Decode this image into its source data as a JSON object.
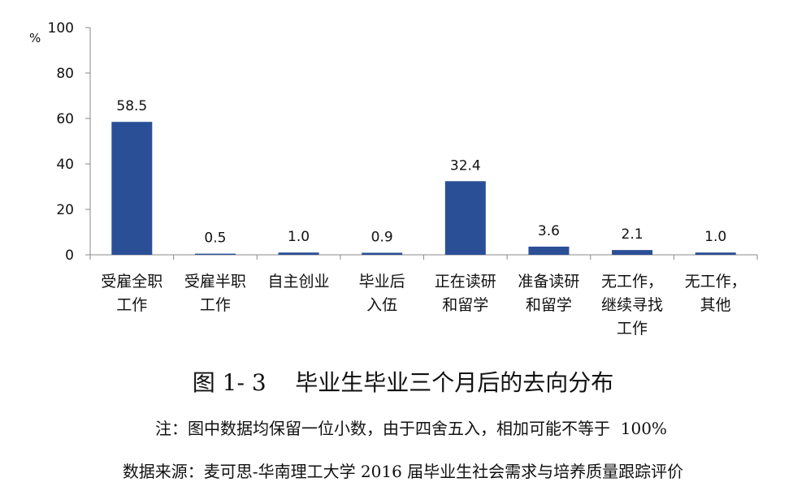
{
  "chart_data": {
    "type": "bar",
    "ylabel": "%",
    "ylim": [
      0,
      100
    ],
    "yticks": [
      0,
      20,
      40,
      60,
      80,
      100
    ],
    "categories": [
      [
        "受雇全职",
        "工作"
      ],
      [
        "受雇半职",
        "工作"
      ],
      [
        "自主创业"
      ],
      [
        "毕业后",
        "入伍"
      ],
      [
        "正在读研",
        "和留学"
      ],
      [
        "准备读研",
        "和留学"
      ],
      [
        "无工作，",
        "继续寻找",
        "工作"
      ],
      [
        "无工作，",
        "其他"
      ]
    ],
    "values": [
      58.5,
      0.5,
      1.0,
      0.9,
      32.4,
      3.6,
      2.1,
      1.0
    ],
    "value_labels": [
      "58.5",
      "0.5",
      "1.0",
      "0.9",
      "32.4",
      "3.6",
      "2.1",
      "1.0"
    ],
    "bar_color": "#2b4f96",
    "grid": false
  },
  "figure_title": "图 1- 3    毕业生毕业三个月后的去向分布",
  "note": "注：图中数据均保留一位小数，由于四舍五入，相加可能不等于  100%",
  "source": "数据来源：麦可思-华南理工大学 2016 届毕业生社会需求与培养质量跟踪评价"
}
